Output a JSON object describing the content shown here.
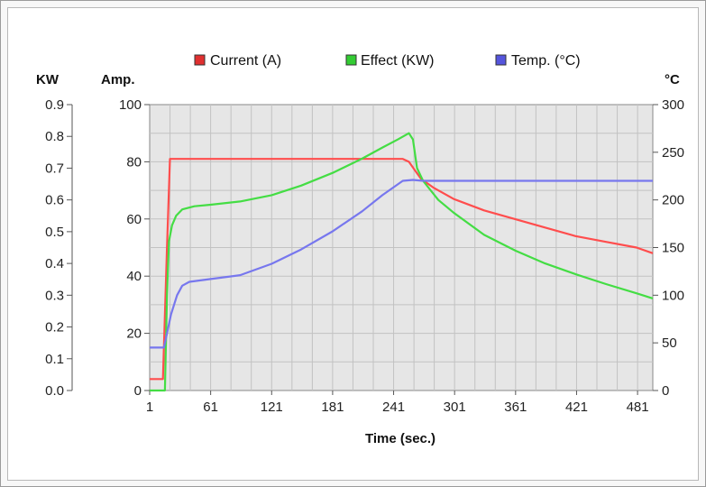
{
  "chart_data": {
    "type": "line",
    "xlabel": "Time (sec.)",
    "x_ticks": [
      1,
      61,
      121,
      181,
      241,
      301,
      361,
      421,
      481
    ],
    "xlim": [
      1,
      496
    ],
    "axes": {
      "kw": {
        "title": "KW",
        "range": [
          0,
          0.9
        ],
        "ticks": [
          "0.0",
          "0.1",
          "0.2",
          "0.3",
          "0.4",
          "0.5",
          "0.6",
          "0.7",
          "0.8",
          "0.9"
        ]
      },
      "amp": {
        "title": "Amp.",
        "range": [
          0,
          100
        ],
        "ticks": [
          "0",
          "20",
          "40",
          "60",
          "80",
          "100"
        ]
      },
      "temp": {
        "title": "°C",
        "range": [
          0,
          300
        ],
        "ticks": [
          "0",
          "50",
          "100",
          "150",
          "200",
          "250",
          "300"
        ]
      }
    },
    "legend_position": "top-center",
    "grid": true,
    "series": [
      {
        "name": "Current (A)",
        "axis": "amp",
        "color": "#ff4d4d",
        "legend_color": "#e03030",
        "points": [
          [
            1,
            4
          ],
          [
            10,
            4
          ],
          [
            14,
            4
          ],
          [
            18,
            50
          ],
          [
            21,
            81
          ],
          [
            30,
            81
          ],
          [
            60,
            81
          ],
          [
            100,
            81
          ],
          [
            150,
            81
          ],
          [
            200,
            81
          ],
          [
            250,
            81
          ],
          [
            256,
            80
          ],
          [
            262,
            77
          ],
          [
            268,
            74
          ],
          [
            280,
            71
          ],
          [
            300,
            67
          ],
          [
            330,
            63
          ],
          [
            360,
            60
          ],
          [
            390,
            57
          ],
          [
            420,
            54
          ],
          [
            450,
            52
          ],
          [
            480,
            50
          ],
          [
            496,
            48
          ]
        ]
      },
      {
        "name": "Effect (KW)",
        "axis": "kw",
        "color": "#44dd44",
        "legend_color": "#33cc33",
        "points": [
          [
            1,
            0
          ],
          [
            16,
            0
          ],
          [
            18,
            0.3
          ],
          [
            20,
            0.47
          ],
          [
            23,
            0.52
          ],
          [
            27,
            0.55
          ],
          [
            33,
            0.57
          ],
          [
            45,
            0.58
          ],
          [
            61,
            0.585
          ],
          [
            90,
            0.595
          ],
          [
            121,
            0.615
          ],
          [
            150,
            0.645
          ],
          [
            181,
            0.685
          ],
          [
            210,
            0.73
          ],
          [
            230,
            0.765
          ],
          [
            245,
            0.79
          ],
          [
            256,
            0.81
          ],
          [
            260,
            0.79
          ],
          [
            264,
            0.7
          ],
          [
            270,
            0.66
          ],
          [
            285,
            0.6
          ],
          [
            300,
            0.56
          ],
          [
            330,
            0.49
          ],
          [
            361,
            0.44
          ],
          [
            390,
            0.4
          ],
          [
            421,
            0.365
          ],
          [
            450,
            0.335
          ],
          [
            481,
            0.305
          ],
          [
            496,
            0.29
          ]
        ]
      },
      {
        "name": "Temp. (°C)",
        "axis": "temp",
        "color": "#7777ee",
        "legend_color": "#5555dd",
        "points": [
          [
            1,
            45
          ],
          [
            15,
            45
          ],
          [
            18,
            60
          ],
          [
            22,
            80
          ],
          [
            28,
            100
          ],
          [
            33,
            110
          ],
          [
            40,
            114
          ],
          [
            61,
            117
          ],
          [
            90,
            121
          ],
          [
            121,
            133
          ],
          [
            150,
            148
          ],
          [
            181,
            167
          ],
          [
            210,
            188
          ],
          [
            230,
            205
          ],
          [
            250,
            220
          ],
          [
            260,
            221
          ],
          [
            270,
            220
          ],
          [
            330,
            220
          ],
          [
            400,
            220
          ],
          [
            440,
            220
          ],
          [
            450,
            220
          ],
          [
            496,
            220
          ]
        ]
      }
    ]
  }
}
